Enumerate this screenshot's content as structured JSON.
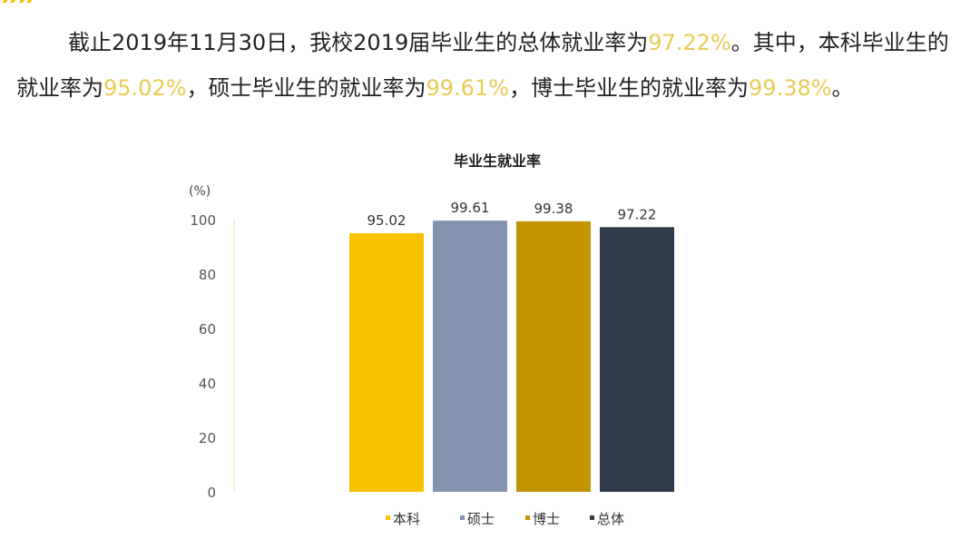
{
  "decoration": {
    "quote_mark": "””"
  },
  "paragraph": {
    "part1": "截止2019年11月30日，我校2019届毕业生的总体就业率为",
    "overall_rate": "97.22%",
    "part2": "。其中，本科毕业生的就业率为",
    "undergrad_rate": "95.02%",
    "part3": "，硕士毕业生的就业率为",
    "master_rate": "99.61%",
    "part4": "，博士毕业生的就业率为",
    "doctor_rate": "99.38%",
    "part5": "。"
  },
  "chart_data": {
    "type": "bar",
    "title": "毕业生就业率",
    "ylabel": "(%)",
    "ylim": [
      0,
      100
    ],
    "yticks": [
      0,
      20,
      40,
      60,
      80,
      100
    ],
    "categories": [
      "本科",
      "硕士",
      "博士",
      "总体"
    ],
    "values": [
      95.02,
      99.61,
      99.38,
      97.22
    ],
    "data_labels": [
      "95.02",
      "99.61",
      "99.38",
      "97.22"
    ],
    "colors": [
      "#f8c200",
      "#8393b0",
      "#c29500",
      "#2f3a4a"
    ],
    "legend_placement": "bottom",
    "grid": false,
    "highlight_color": "#e9cc55"
  }
}
